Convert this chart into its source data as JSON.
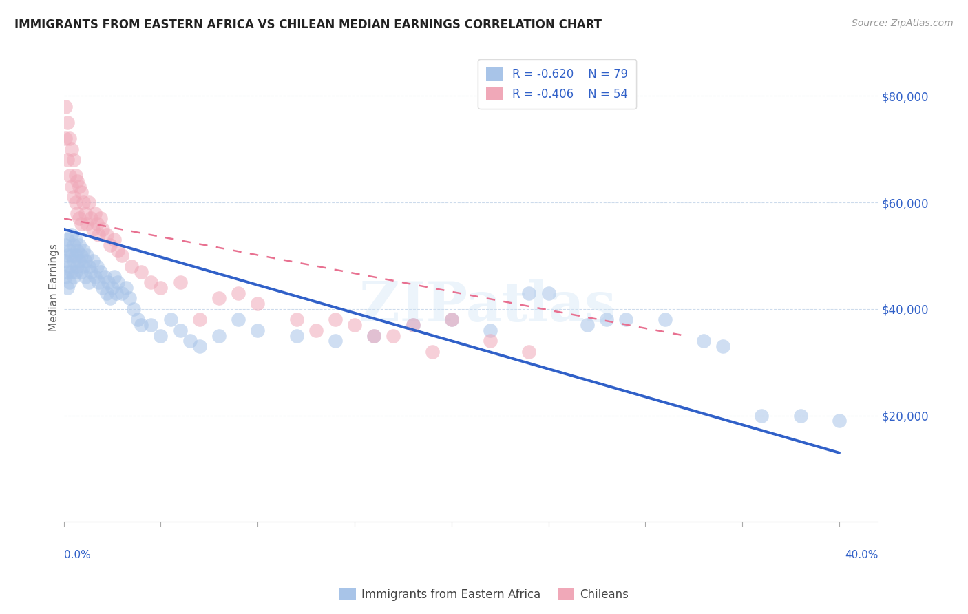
{
  "title": "IMMIGRANTS FROM EASTERN AFRICA VS CHILEAN MEDIAN EARNINGS CORRELATION CHART",
  "source": "Source: ZipAtlas.com",
  "ylabel": "Median Earnings",
  "yticks": [
    20000,
    40000,
    60000,
    80000
  ],
  "ytick_labels": [
    "$20,000",
    "$40,000",
    "$60,000",
    "$80,000"
  ],
  "xlim": [
    0.0,
    0.42
  ],
  "ylim": [
    0,
    88000
  ],
  "legend_blue_r": "R = -0.620",
  "legend_blue_n": "N = 79",
  "legend_pink_r": "R = -0.406",
  "legend_pink_n": "N = 54",
  "legend_bottom_blue": "Immigrants from Eastern Africa",
  "legend_bottom_pink": "Chileans",
  "blue_color": "#a8c4e8",
  "pink_color": "#f0a8b8",
  "blue_line_color": "#3060c8",
  "pink_line_color": "#e87090",
  "watermark": "ZIPatlas",
  "blue_line_x0": 0.0,
  "blue_line_y0": 55000,
  "blue_line_x1": 0.4,
  "blue_line_y1": 13000,
  "pink_line_x0": 0.0,
  "pink_line_y0": 57000,
  "pink_line_x1": 0.32,
  "pink_line_y1": 35000,
  "blue_scatter_x": [
    0.001,
    0.001,
    0.001,
    0.002,
    0.002,
    0.002,
    0.002,
    0.003,
    0.003,
    0.003,
    0.004,
    0.004,
    0.004,
    0.005,
    0.005,
    0.005,
    0.006,
    0.006,
    0.006,
    0.007,
    0.007,
    0.008,
    0.008,
    0.009,
    0.009,
    0.01,
    0.01,
    0.011,
    0.011,
    0.012,
    0.013,
    0.013,
    0.014,
    0.015,
    0.016,
    0.017,
    0.018,
    0.019,
    0.02,
    0.021,
    0.022,
    0.023,
    0.024,
    0.025,
    0.026,
    0.027,
    0.028,
    0.03,
    0.032,
    0.034,
    0.036,
    0.038,
    0.04,
    0.045,
    0.05,
    0.055,
    0.06,
    0.065,
    0.07,
    0.08,
    0.09,
    0.1,
    0.12,
    0.14,
    0.16,
    0.18,
    0.2,
    0.22,
    0.24,
    0.25,
    0.27,
    0.28,
    0.29,
    0.31,
    0.33,
    0.34,
    0.36,
    0.38,
    0.4
  ],
  "blue_scatter_y": [
    52000,
    49000,
    46000,
    53000,
    50000,
    47000,
    44000,
    51000,
    48000,
    45000,
    54000,
    50000,
    47000,
    52000,
    49000,
    46000,
    53000,
    50000,
    47000,
    51000,
    48000,
    52000,
    49000,
    50000,
    47000,
    51000,
    48000,
    49000,
    46000,
    50000,
    48000,
    45000,
    47000,
    49000,
    46000,
    48000,
    45000,
    47000,
    44000,
    46000,
    43000,
    45000,
    42000,
    44000,
    46000,
    43000,
    45000,
    43000,
    44000,
    42000,
    40000,
    38000,
    37000,
    37000,
    35000,
    38000,
    36000,
    34000,
    33000,
    35000,
    38000,
    36000,
    35000,
    34000,
    35000,
    37000,
    38000,
    36000,
    43000,
    43000,
    37000,
    38000,
    38000,
    38000,
    34000,
    33000,
    20000,
    20000,
    19000
  ],
  "pink_scatter_x": [
    0.001,
    0.001,
    0.002,
    0.002,
    0.003,
    0.003,
    0.004,
    0.004,
    0.005,
    0.005,
    0.006,
    0.006,
    0.007,
    0.007,
    0.008,
    0.008,
    0.009,
    0.009,
    0.01,
    0.011,
    0.012,
    0.013,
    0.014,
    0.015,
    0.016,
    0.017,
    0.018,
    0.019,
    0.02,
    0.022,
    0.024,
    0.026,
    0.028,
    0.03,
    0.035,
    0.04,
    0.045,
    0.05,
    0.06,
    0.07,
    0.08,
    0.09,
    0.1,
    0.12,
    0.13,
    0.14,
    0.15,
    0.16,
    0.17,
    0.18,
    0.19,
    0.2,
    0.22,
    0.24
  ],
  "pink_scatter_y": [
    78000,
    72000,
    75000,
    68000,
    72000,
    65000,
    70000,
    63000,
    68000,
    61000,
    65000,
    60000,
    64000,
    58000,
    63000,
    57000,
    62000,
    56000,
    60000,
    58000,
    56000,
    60000,
    57000,
    55000,
    58000,
    56000,
    54000,
    57000,
    55000,
    54000,
    52000,
    53000,
    51000,
    50000,
    48000,
    47000,
    45000,
    44000,
    45000,
    38000,
    42000,
    43000,
    41000,
    38000,
    36000,
    38000,
    37000,
    35000,
    35000,
    37000,
    32000,
    38000,
    34000,
    32000
  ]
}
